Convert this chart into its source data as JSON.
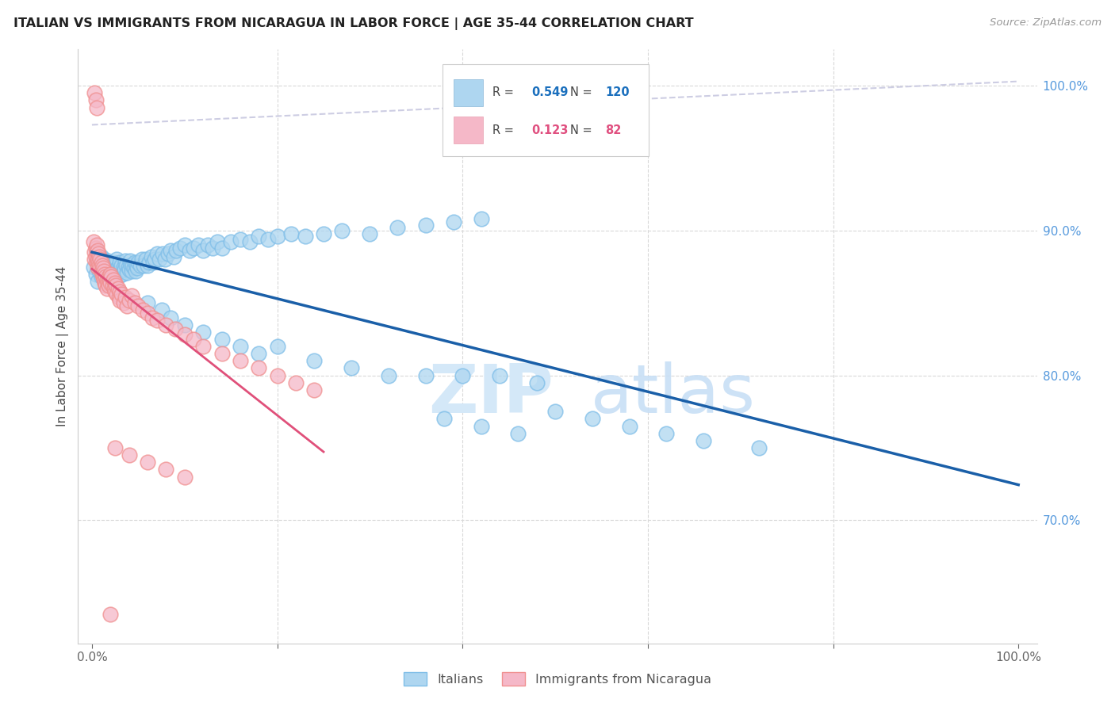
{
  "title": "ITALIAN VS IMMIGRANTS FROM NICARAGUA IN LABOR FORCE | AGE 35-44 CORRELATION CHART",
  "source": "Source: ZipAtlas.com",
  "ylabel": "In Labor Force | Age 35-44",
  "x_min": 0.0,
  "x_max": 1.0,
  "y_min": 0.615,
  "y_max": 1.025,
  "x_tick_labels": [
    "0.0%",
    "",
    "",
    "",
    "",
    "100.0%"
  ],
  "y_tick_labels_right": [
    "70.0%",
    "80.0%",
    "90.0%",
    "100.0%"
  ],
  "y_ticks_right": [
    0.7,
    0.8,
    0.9,
    1.0
  ],
  "legend_R_blue": "0.549",
  "legend_N_blue": "120",
  "legend_R_pink": "0.123",
  "legend_N_pink": "82",
  "blue_color": "#7fbee8",
  "blue_fill_color": "#aed6f0",
  "pink_color": "#f09090",
  "pink_fill_color": "#f5b8c8",
  "blue_line_color": "#1a5fa8",
  "pink_line_color": "#e0507a",
  "dashed_line_color": "#c8c8e0",
  "watermark_zip_color": "#d4e8f8",
  "watermark_atlas_color": "#c8dff5"
}
